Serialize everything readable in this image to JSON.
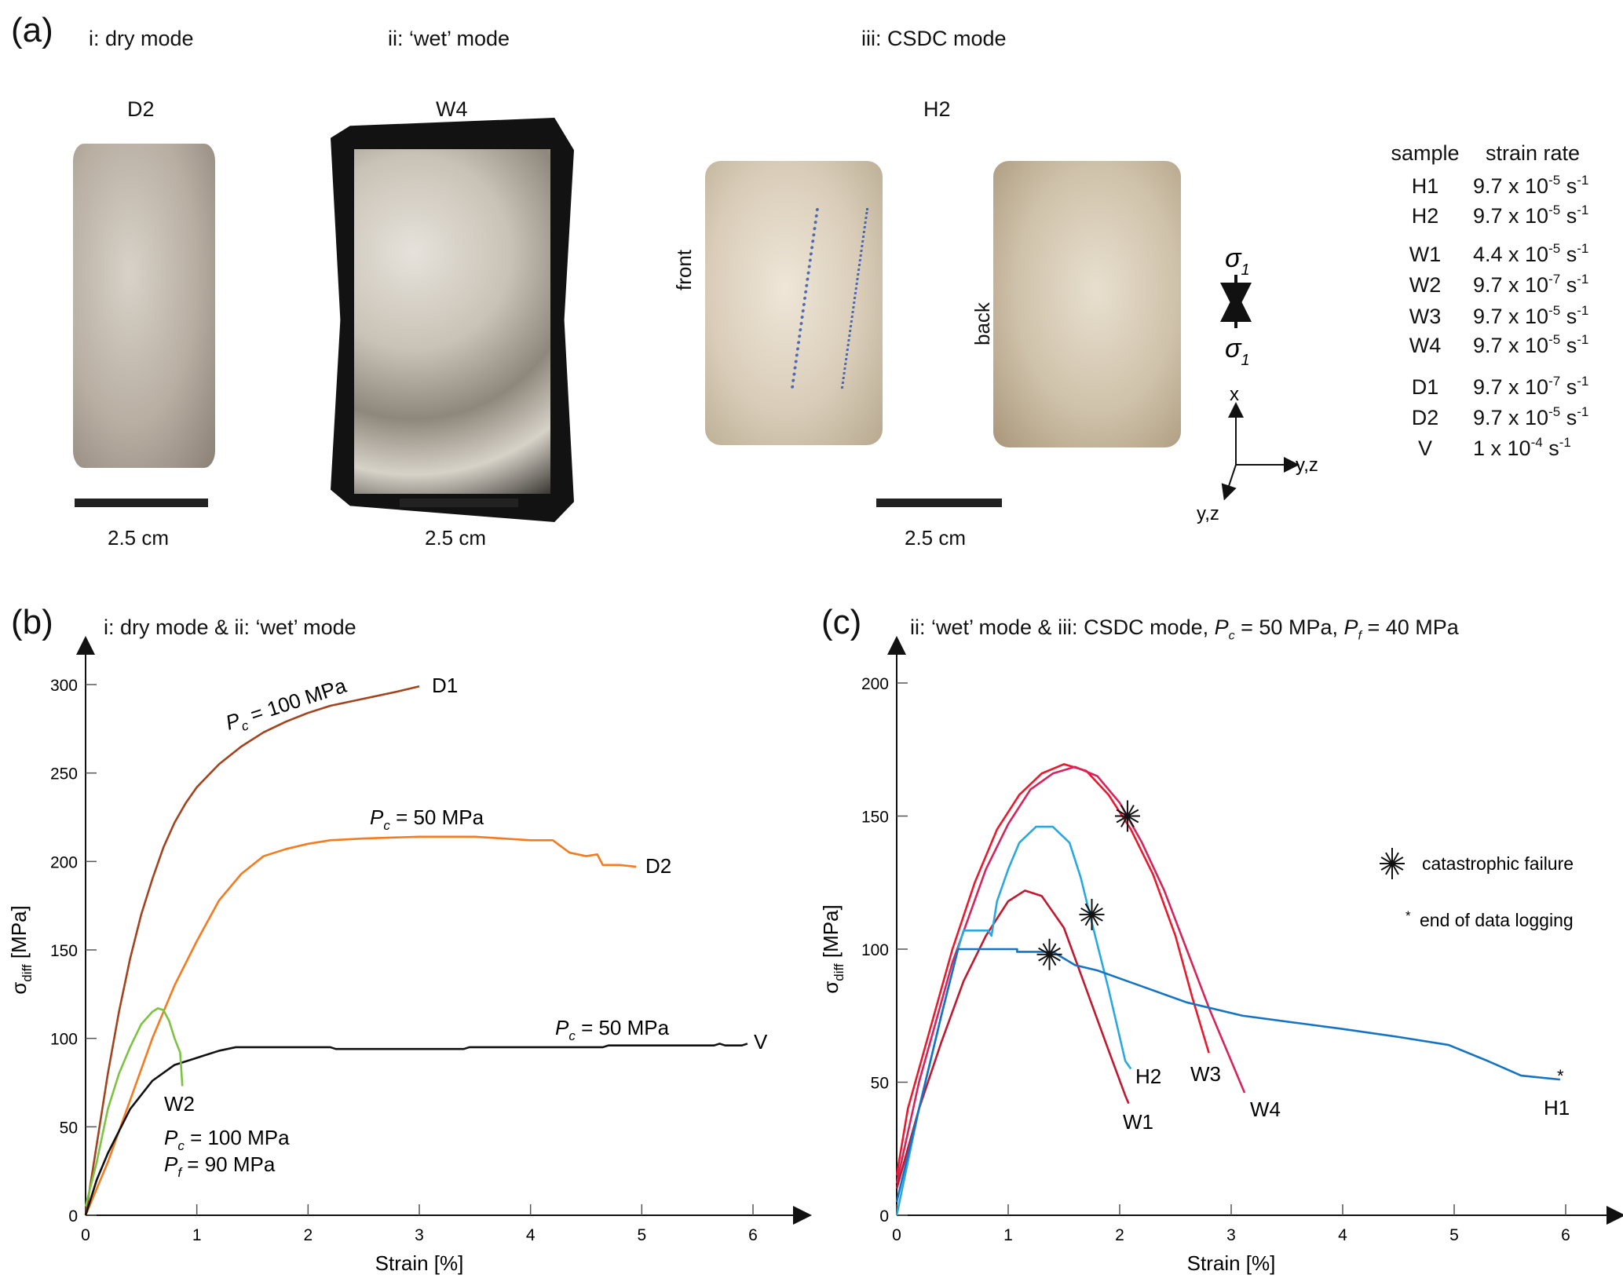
{
  "panel_a": {
    "letter": "(a)",
    "modes": [
      "i: dry mode",
      "ii: ‘wet’ mode",
      "iii: CSDC mode"
    ],
    "samples": [
      "D2",
      "W4",
      "H2"
    ],
    "scale_label": "2.5 cm",
    "view_front": "front",
    "view_back": "back",
    "stress_symbol": "σ",
    "stress_sub": "1",
    "axis_x": "x",
    "axis_yz": "y,z",
    "table": {
      "header_sample": "sample",
      "header_rate": "strain rate",
      "rows": [
        {
          "sample": "H1",
          "coef": "9.7 x 10",
          "exp": "-5",
          "unit": "s",
          "unit_exp": "-1"
        },
        {
          "sample": "H2",
          "coef": "9.7 x 10",
          "exp": "-5",
          "unit": "s",
          "unit_exp": "-1"
        },
        {
          "sample": "W1",
          "coef": "4.4 x 10",
          "exp": "-5",
          "unit": "s",
          "unit_exp": "-1"
        },
        {
          "sample": "W2",
          "coef": "9.7 x 10",
          "exp": "-7",
          "unit": "s",
          "unit_exp": "-1"
        },
        {
          "sample": "W3",
          "coef": "9.7 x 10",
          "exp": "-5",
          "unit": "s",
          "unit_exp": "-1"
        },
        {
          "sample": "W4",
          "coef": "9.7 x 10",
          "exp": "-5",
          "unit": "s",
          "unit_exp": "-1"
        },
        {
          "sample": "D1",
          "coef": "9.7 x 10",
          "exp": "-7",
          "unit": "s",
          "unit_exp": "-1"
        },
        {
          "sample": "D2",
          "coef": "9.7 x 10",
          "exp": "-5",
          "unit": "s",
          "unit_exp": "-1"
        },
        {
          "sample": "V",
          "coef": "1 x 10",
          "exp": "-4",
          "unit": "s",
          "unit_exp": "-1"
        }
      ]
    }
  },
  "chart_data": [
    {
      "type": "line",
      "letter": "(b)",
      "title": "i: dry mode & ii: ‘wet’ mode",
      "xlabel": "Strain [%]",
      "ylabel_main": "σ",
      "ylabel_sub": "diff",
      "ylabel_unit": " [MPa]",
      "xlim": [
        0,
        6
      ],
      "ylim": [
        0,
        300
      ],
      "xticks": [
        "0",
        "1",
        "2",
        "3",
        "4",
        "5",
        "6"
      ],
      "yticks": [
        "0",
        "50",
        "100",
        "150",
        "200",
        "250",
        "300"
      ],
      "series": [
        {
          "name": "D1",
          "color": "#a2431d",
          "x": [
            0,
            0.1,
            0.2,
            0.3,
            0.4,
            0.5,
            0.6,
            0.7,
            0.8,
            0.9,
            1.0,
            1.2,
            1.4,
            1.6,
            1.8,
            2.0,
            2.2,
            2.5,
            2.8,
            3.0
          ],
          "y": [
            0,
            40,
            80,
            115,
            145,
            170,
            190,
            208,
            222,
            233,
            242,
            255,
            265,
            273,
            279,
            284,
            288,
            292,
            296,
            299
          ]
        },
        {
          "name": "D2",
          "color": "#f47b20",
          "x": [
            0,
            0.2,
            0.4,
            0.6,
            0.8,
            1.0,
            1.2,
            1.4,
            1.6,
            1.8,
            2.0,
            2.2,
            2.5,
            3.0,
            3.5,
            4.0,
            4.2,
            4.35,
            4.5,
            4.6,
            4.65,
            4.8,
            4.95
          ],
          "y": [
            0,
            30,
            65,
            100,
            130,
            155,
            178,
            193,
            203,
            207,
            210,
            212,
            213,
            214,
            214,
            212,
            212,
            205,
            203,
            204,
            198,
            198,
            197
          ]
        },
        {
          "name": "V",
          "color": "#111111",
          "x": [
            0,
            0.1,
            0.2,
            0.4,
            0.6,
            0.8,
            1.0,
            1.2,
            1.35,
            2.2,
            2.25,
            3.4,
            3.45,
            4.65,
            4.7,
            5.65,
            5.7,
            5.75,
            5.9,
            5.95
          ],
          "y": [
            0,
            20,
            35,
            60,
            76,
            85,
            89,
            93,
            95,
            95,
            94,
            94,
            95,
            95,
            96,
            96,
            97,
            96,
            96,
            97
          ]
        },
        {
          "name": "W2",
          "color": "#7dc242",
          "x": [
            0,
            0.1,
            0.2,
            0.3,
            0.4,
            0.5,
            0.6,
            0.65,
            0.7,
            0.75,
            0.8,
            0.85,
            0.87
          ],
          "y": [
            5,
            30,
            60,
            80,
            95,
            108,
            115,
            117,
            116,
            110,
            100,
            92,
            73
          ]
        }
      ],
      "annotations": [
        {
          "sym": "P",
          "sub": "c",
          "text": " = 100 MPa",
          "for": "D1"
        },
        {
          "sym": "P",
          "sub": "c",
          "text": " = 50 MPa",
          "for": "D2"
        },
        {
          "sym": "P",
          "sub": "c",
          "text": " = 50 MPa",
          "for": "V"
        },
        {
          "sym": "P",
          "sub": "c",
          "text": " = 100 MPa",
          "for": "W2"
        },
        {
          "sym": "P",
          "sub": "f",
          "text": " = 90 MPa",
          "for": "W2"
        }
      ]
    },
    {
      "type": "line",
      "letter": "(c)",
      "title_pre": "ii: ‘wet’ mode & iii: CSDC mode, ",
      "title_p1": {
        "sym": "P",
        "sub": "c",
        "text": " = 50 MPa, "
      },
      "title_p2": {
        "sym": "P",
        "sub": "f",
        "text": " = 40 MPa"
      },
      "xlabel": "Strain [%]",
      "ylabel_main": "σ",
      "ylabel_sub": "diff",
      "ylabel_unit": " [MPa]",
      "xlim": [
        0,
        6
      ],
      "ylim": [
        0,
        200
      ],
      "xticks": [
        "0",
        "1",
        "2",
        "3",
        "4",
        "5",
        "6"
      ],
      "yticks": [
        "0",
        "50",
        "100",
        "150",
        "200"
      ],
      "series": [
        {
          "name": "W3",
          "color": "#e8192c",
          "x": [
            0,
            0.1,
            0.3,
            0.5,
            0.7,
            0.9,
            1.1,
            1.3,
            1.5,
            1.7,
            1.9,
            2.1,
            2.3,
            2.5,
            2.65,
            2.8
          ],
          "y": [
            15,
            40,
            70,
            100,
            125,
            145,
            158,
            166,
            169.5,
            167,
            158,
            145,
            128,
            105,
            82,
            61
          ]
        },
        {
          "name": "W4",
          "color": "#d6245a",
          "x": [
            0,
            0.2,
            0.5,
            0.8,
            1.0,
            1.2,
            1.4,
            1.6,
            1.8,
            2.0,
            2.2,
            2.4,
            2.6,
            2.8,
            3.0,
            3.12
          ],
          "y": [
            12,
            50,
            95,
            130,
            147,
            160,
            166,
            168.5,
            165,
            155,
            140,
            122,
            100,
            78,
            58,
            46
          ]
        },
        {
          "name": "W1",
          "color": "#c0182f",
          "x": [
            0,
            0.2,
            0.4,
            0.6,
            0.8,
            1.0,
            1.15,
            1.3,
            1.5,
            1.7,
            1.9,
            2.05,
            2.08
          ],
          "y": [
            10,
            40,
            65,
            88,
            105,
            118,
            122,
            120,
            108,
            85,
            62,
            45,
            42
          ]
        },
        {
          "name": "H2",
          "color": "#29a8e0",
          "x": [
            0,
            0.2,
            0.4,
            0.55,
            0.6,
            0.82,
            0.85,
            0.9,
            1.0,
            1.1,
            1.25,
            1.4,
            1.55,
            1.65,
            1.75,
            1.9,
            2.05,
            2.1
          ],
          "y": [
            0,
            40,
            75,
            100,
            107,
            107,
            105,
            118,
            130,
            140,
            146,
            146,
            140,
            127,
            110,
            85,
            58,
            55
          ]
        },
        {
          "name": "H1",
          "color": "#1673c4",
          "x": [
            0,
            0.2,
            0.4,
            0.55,
            1.08,
            1.08,
            1.4,
            1.6,
            1.8,
            2.0,
            2.2,
            2.6,
            3.1,
            4.0,
            4.5,
            4.95,
            5.3,
            5.6,
            5.95
          ],
          "y": [
            5,
            40,
            75,
            100,
            100,
            99,
            99,
            94,
            92,
            89,
            86,
            80,
            75,
            70,
            67,
            64,
            58,
            52.5,
            51
          ]
        }
      ],
      "failure_points": [
        {
          "x": 2.07,
          "y": 150
        },
        {
          "x": 1.75,
          "y": 113
        },
        {
          "x": 1.37,
          "y": 98
        }
      ],
      "legend": {
        "failure": "catastrophic failure",
        "end_mark": "*",
        "end": "end of data logging",
        "placement": "right"
      }
    }
  ]
}
